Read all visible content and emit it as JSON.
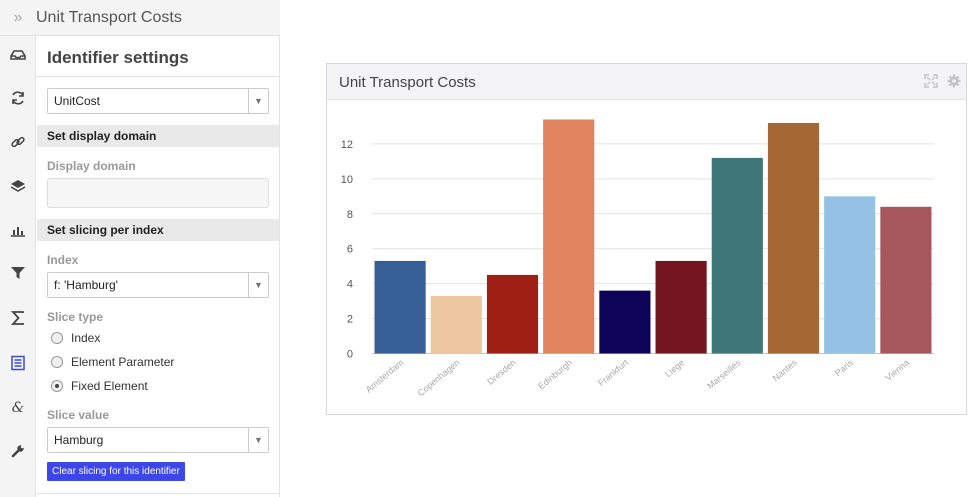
{
  "panel": {
    "title": "Unit Transport Costs",
    "expand_glyph": "»",
    "icons": [
      "inbox-icon",
      "refresh-icon",
      "link-icon",
      "layers-icon",
      "bar-chart-icon",
      "filter-icon",
      "sigma-icon",
      "document-icon",
      "ampersand-icon",
      "wrench-icon"
    ],
    "active_icon": "document-icon"
  },
  "settings": {
    "title": "Identifier settings",
    "identifier_value": "UnitCost",
    "display_domain_section": "Set display domain",
    "display_domain_label": "Display domain",
    "display_domain_value": "",
    "slicing_section": "Set slicing per index",
    "index_label": "Index",
    "index_value": "f: 'Hamburg'",
    "slice_type_label": "Slice type",
    "slice_options": [
      "Index",
      "Element Parameter",
      "Fixed Element"
    ],
    "slice_selected": "Fixed Element",
    "slice_value_label": "Slice value",
    "slice_value": "Hamburg",
    "clear_button": "Clear slicing for this identifier"
  },
  "widget": {
    "title": "Unit Transport Costs",
    "icons": [
      "expand-icon",
      "gear-icon"
    ]
  },
  "chart_data": {
    "type": "bar",
    "categories": [
      "Amsterdam",
      "Copenhagen",
      "Dresden",
      "Edinburgh",
      "Frankfurt",
      "Liege",
      "Marseilles",
      "Nantes",
      "Paris",
      "Vienna"
    ],
    "values": [
      5.3,
      3.3,
      4.5,
      13.4,
      3.6,
      5.3,
      11.2,
      13.2,
      9.0,
      8.4
    ],
    "colors": [
      "#365f95",
      "#ecc79f",
      "#9e2015",
      "#e1835f",
      "#0d0458",
      "#73161f",
      "#3e7777",
      "#a56734",
      "#94c2e4",
      "#a5575d"
    ],
    "yticks": [
      0,
      2,
      4,
      6,
      8,
      10,
      12
    ],
    "ylim": [
      0,
      14
    ],
    "grid": true,
    "title": "",
    "xlabel": "",
    "ylabel": ""
  }
}
